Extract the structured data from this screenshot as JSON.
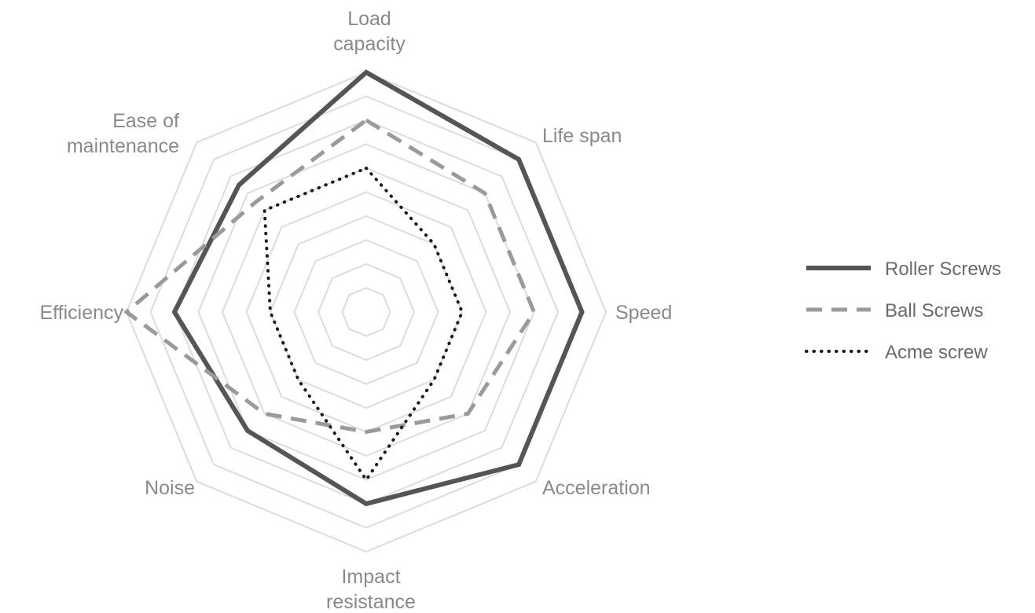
{
  "chart_data": {
    "type": "radar",
    "title": "",
    "axes": [
      {
        "key": "load_capacity",
        "label_lines": [
          "Load",
          "capacity"
        ]
      },
      {
        "key": "life_span",
        "label_lines": [
          "Life span"
        ]
      },
      {
        "key": "speed",
        "label_lines": [
          "Speed"
        ]
      },
      {
        "key": "acceleration",
        "label_lines": [
          "Acceleration"
        ]
      },
      {
        "key": "impact_resistance",
        "label_lines": [
          "Impact",
          "resistance"
        ]
      },
      {
        "key": "noise",
        "label_lines": [
          "Noise"
        ]
      },
      {
        "key": "efficiency",
        "label_lines": [
          "Efficiency"
        ]
      },
      {
        "key": "ease_of_maintenance",
        "label_lines": [
          "Ease of",
          "maintenance"
        ]
      }
    ],
    "scale": {
      "min": 0,
      "max": 10,
      "rings": 10
    },
    "grid": true,
    "legend_position": "right",
    "series": [
      {
        "name": "Roller Screws",
        "style": "solid",
        "color": "#555555",
        "values": [
          10,
          9,
          9,
          9,
          8,
          7,
          8,
          7.5
        ]
      },
      {
        "name": "Ball Screws",
        "style": "dashed",
        "color": "#9a9a9a",
        "values": [
          8,
          7,
          7,
          6,
          5,
          6,
          10,
          6.5
        ]
      },
      {
        "name": "Acme screw",
        "style": "dotted",
        "color": "#1a1a1a",
        "values": [
          6,
          4,
          4,
          4,
          7,
          4,
          4,
          6
        ]
      }
    ]
  }
}
